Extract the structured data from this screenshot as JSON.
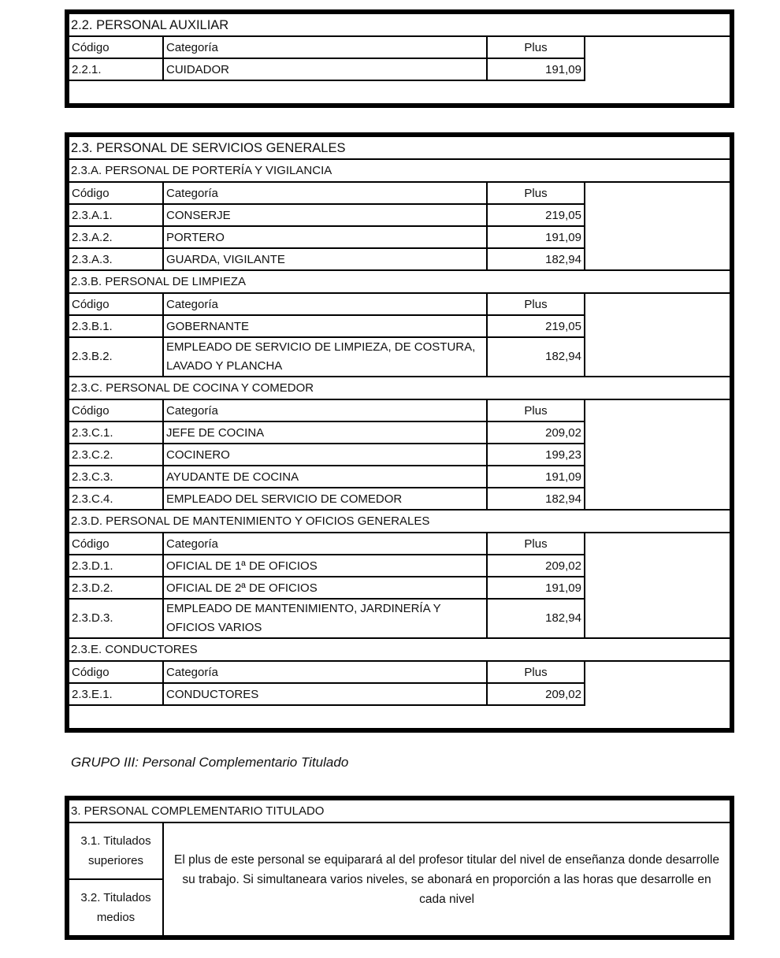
{
  "headers": {
    "code": "Código",
    "category": "Categoría",
    "plus": "Plus"
  },
  "table_22": {
    "title": "2.2.    PERSONAL AUXILIAR",
    "sections": [
      {
        "rows": [
          {
            "code": "2.2.1.",
            "category": "CUIDADOR",
            "plus": "191,09"
          }
        ]
      }
    ]
  },
  "table_23": {
    "title": "2.3.    PERSONAL DE SERVICIOS GENERALES",
    "sections": [
      {
        "title": "2.3.A. PERSONAL DE PORTERÍA Y VIGILANCIA",
        "rows": [
          {
            "code": "2.3.A.1.",
            "category": "CONSERJE",
            "plus": "219,05"
          },
          {
            "code": "2.3.A.2.",
            "category": "PORTERO",
            "plus": "191,09"
          },
          {
            "code": "2.3.A.3.",
            "category": "GUARDA, VIGILANTE",
            "plus": "182,94"
          }
        ]
      },
      {
        "title": "2.3.B. PERSONAL DE LIMPIEZA",
        "rows": [
          {
            "code": "2.3.B.1.",
            "category": "GOBERNANTE",
            "plus": "219,05"
          },
          {
            "code": "2.3.B.2.",
            "category": "EMPLEADO DE SERVICIO DE LIMPIEZA, DE COSTURA, LAVADO Y PLANCHA",
            "plus": "182,94"
          }
        ]
      },
      {
        "title": "2.3.C. PERSONAL DE COCINA Y COMEDOR",
        "rows": [
          {
            "code": "2.3.C.1.",
            "category": "JEFE DE COCINA",
            "plus": "209,02"
          },
          {
            "code": "2.3.C.2.",
            "category": "COCINERO",
            "plus": "199,23"
          },
          {
            "code": "2.3.C.3.",
            "category": "AYUDANTE DE COCINA",
            "plus": "191,09"
          },
          {
            "code": "2.3.C.4.",
            "category": "EMPLEADO DEL SERVICIO DE COMEDOR",
            "plus": "182,94"
          }
        ]
      },
      {
        "title": "2.3.D. PERSONAL DE MANTENIMIENTO Y OFICIOS GENERALES",
        "rows": [
          {
            "code": "2.3.D.1.",
            "category": "OFICIAL DE 1ª DE OFICIOS",
            "plus": "209,02"
          },
          {
            "code": "2.3.D.2.",
            "category": "OFICIAL DE 2ª DE OFICIOS",
            "plus": "191,09"
          },
          {
            "code": "2.3.D.3.",
            "category": "EMPLEADO DE MANTENIMIENTO, JARDINERÍA Y OFICIOS VARIOS",
            "plus": "182,94"
          }
        ]
      },
      {
        "title": "2.3.E. CONDUCTORES",
        "rows": [
          {
            "code": "2.3.E.1.",
            "category": "CONDUCTORES",
            "plus": "209,02"
          }
        ]
      }
    ]
  },
  "group_heading": "GRUPO III: Personal Complementario Titulado",
  "table_3": {
    "title": "3. PERSONAL COMPLEMENTARIO TITULADO",
    "item1": "3.1. Titulados superiores",
    "item2": "3.2. Titulados medios",
    "text": "El plus de este personal se equiparará al del profesor titular del nivel de enseñanza donde desarrolle su trabajo. Si simultaneara varios niveles, se abonará en proporción a las horas que desarrolle en cada nivel"
  }
}
